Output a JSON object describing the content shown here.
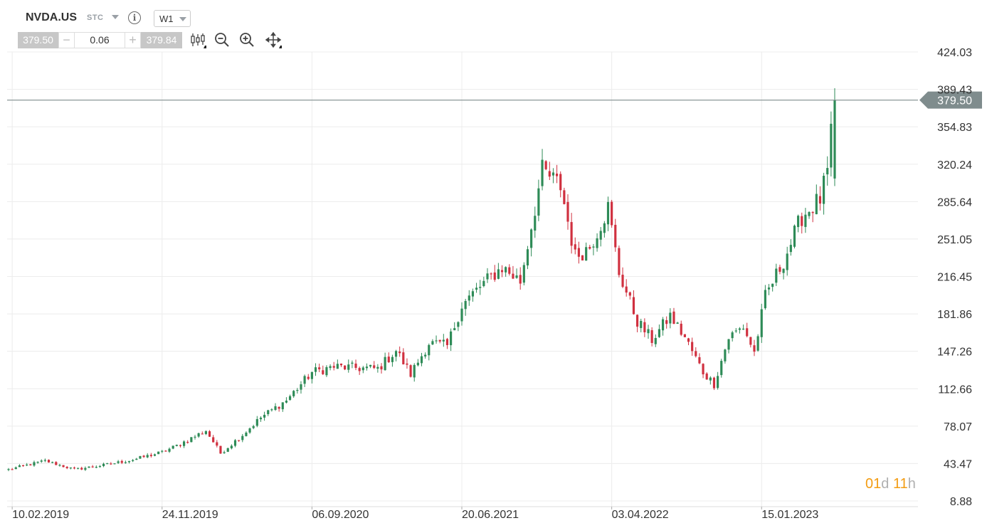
{
  "toolbar": {
    "symbol": "NVDA.US",
    "instrument_type": "STC",
    "timeframe": "W1",
    "bid": "379.50",
    "quantity": "0.06",
    "ask": "379.84",
    "minus": "−",
    "plus": "+",
    "icons": [
      "candlestick-icon",
      "zoom-out-icon",
      "zoom-in-icon",
      "move-icon"
    ]
  },
  "countdown": {
    "days": "01",
    "days_unit": "d",
    "hours": "11",
    "hours_unit": "h"
  },
  "colors": {
    "up": "#2e8b57",
    "down": "#d0303f",
    "grid": "#ececec",
    "price_line": "#7f8c8d",
    "price_tag": "#7f8c8d",
    "countdown": "#f39c12"
  },
  "chart_data": {
    "type": "candlestick",
    "symbol": "NVDA.US",
    "timeframe": "W1",
    "current_price": 379.5,
    "current_price_label": "379.50",
    "ylim": [
      8.88,
      424.03
    ],
    "y_ticks": [
      "424.03",
      "389.43",
      "354.83",
      "320.24",
      "285.64",
      "251.05",
      "216.45",
      "181.86",
      "147.26",
      "112.66",
      "78.07",
      "43.47",
      "8.88"
    ],
    "x_ticks": [
      "10.02.2019",
      "24.11.2019",
      "06.09.2020",
      "20.06.2021",
      "03.04.2022",
      "15.01.2023"
    ],
    "x_range": [
      "2019-02-03",
      "2023-06-04"
    ],
    "grid": true,
    "close_path": [
      [
        "2019-02-03",
        38
      ],
      [
        "2019-04-14",
        46
      ],
      [
        "2019-06-09",
        38
      ],
      [
        "2019-08-04",
        42
      ],
      [
        "2019-09-29",
        47
      ],
      [
        "2019-11-24",
        54
      ],
      [
        "2019-12-22",
        60
      ],
      [
        "2020-02-16",
        74
      ],
      [
        "2020-03-15",
        53
      ],
      [
        "2020-04-26",
        70
      ],
      [
        "2020-05-31",
        86
      ],
      [
        "2020-07-19",
        102
      ],
      [
        "2020-09-06",
        128
      ],
      [
        "2020-10-18",
        133
      ],
      [
        "2020-11-29",
        132
      ],
      [
        "2021-01-10",
        131
      ],
      [
        "2021-02-14",
        148
      ],
      [
        "2021-03-14",
        126
      ],
      [
        "2021-04-18",
        155
      ],
      [
        "2021-05-23",
        152
      ],
      [
        "2021-06-20",
        190
      ],
      [
        "2021-07-25",
        207
      ],
      [
        "2021-09-05",
        225
      ],
      [
        "2021-10-10",
        212
      ],
      [
        "2021-11-21",
        314
      ],
      [
        "2021-12-26",
        300
      ],
      [
        "2022-01-23",
        235
      ],
      [
        "2022-02-20",
        244
      ],
      [
        "2022-03-27",
        280
      ],
      [
        "2022-04-17",
        220
      ],
      [
        "2022-05-22",
        175
      ],
      [
        "2022-06-19",
        158
      ],
      [
        "2022-07-24",
        180
      ],
      [
        "2022-08-21",
        160
      ],
      [
        "2022-09-25",
        128
      ],
      [
        "2022-10-16",
        117
      ],
      [
        "2022-11-13",
        160
      ],
      [
        "2022-12-11",
        170
      ],
      [
        "2023-01-01",
        146
      ],
      [
        "2023-01-22",
        198
      ],
      [
        "2023-02-26",
        231
      ],
      [
        "2023-04-02",
        272
      ],
      [
        "2023-05-07",
        288
      ],
      [
        "2023-05-21",
        312
      ],
      [
        "2023-06-04",
        379.5
      ]
    ],
    "notable_high": 390.5
  }
}
